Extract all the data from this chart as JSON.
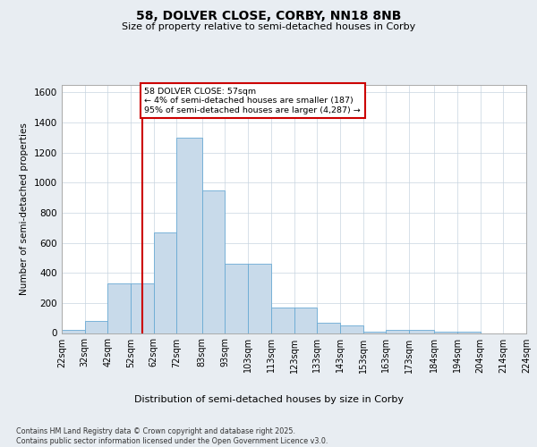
{
  "title_line1": "58, DOLVER CLOSE, CORBY, NN18 8NB",
  "title_line2": "Size of property relative to semi-detached houses in Corby",
  "xlabel": "Distribution of semi-detached houses by size in Corby",
  "ylabel": "Number of semi-detached properties",
  "footnote": "Contains HM Land Registry data © Crown copyright and database right 2025.\nContains public sector information licensed under the Open Government Licence v3.0.",
  "bar_color": "#c8daea",
  "bar_edge_color": "#6aaad4",
  "vline_color": "#cc0000",
  "vline_x": 57,
  "annotation_text": "58 DOLVER CLOSE: 57sqm\n← 4% of semi-detached houses are smaller (187)\n95% of semi-detached houses are larger (4,287) →",
  "annotation_box_color": "#ffffff",
  "annotation_edge_color": "#cc0000",
  "bin_edges": [
    22,
    32,
    42,
    52,
    62,
    72,
    83,
    93,
    103,
    113,
    123,
    133,
    143,
    153,
    163,
    173,
    184,
    194,
    204,
    214,
    224
  ],
  "bin_labels": [
    "22sqm",
    "32sqm",
    "42sqm",
    "52sqm",
    "62sqm",
    "72sqm",
    "83sqm",
    "93sqm",
    "103sqm",
    "113sqm",
    "123sqm",
    "133sqm",
    "143sqm",
    "153sqm",
    "163sqm",
    "173sqm",
    "184sqm",
    "194sqm",
    "204sqm",
    "214sqm",
    "224sqm"
  ],
  "bar_heights": [
    20,
    80,
    330,
    330,
    670,
    1300,
    950,
    460,
    460,
    170,
    170,
    70,
    50,
    10,
    20,
    20,
    10,
    10,
    0,
    0
  ],
  "ylim": [
    0,
    1650
  ],
  "yticks": [
    0,
    200,
    400,
    600,
    800,
    1000,
    1200,
    1400,
    1600
  ],
  "background_color": "#e8edf2",
  "plot_background": "#ffffff",
  "grid_color": "#c8d4e0"
}
